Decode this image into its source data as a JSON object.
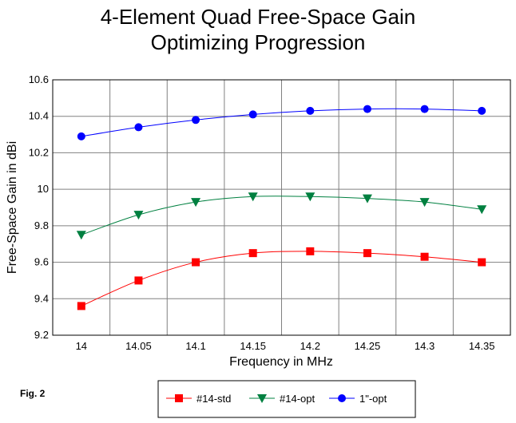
{
  "figure_label": "Fig. 2",
  "chart_data": {
    "type": "line",
    "title_lines": [
      "4-Element Quad Free-Space Gain",
      "Optimizing Progression"
    ],
    "xlabel": "Frequency in MHz",
    "ylabel": "Free-Space Gain in dBi",
    "x": [
      14,
      14.05,
      14.1,
      14.15,
      14.2,
      14.25,
      14.3,
      14.35
    ],
    "x_tick_labels": [
      "14",
      "14.05",
      "14.1",
      "14.15",
      "14.2",
      "14.25",
      "14.3",
      "14.35"
    ],
    "ylim": [
      9.2,
      10.6
    ],
    "y_ticks": [
      9.2,
      9.4,
      9.6,
      9.8,
      10,
      10.2,
      10.4,
      10.6
    ],
    "y_tick_labels": [
      "9.2",
      "9.4",
      "9.6",
      "9.8",
      "10",
      "10.2",
      "10.4",
      "10.6"
    ],
    "grid": true,
    "legend_position": "bottom",
    "series": [
      {
        "name": "#14-std",
        "color": "#ff0000",
        "marker": "square",
        "values": [
          9.36,
          9.5,
          9.6,
          9.65,
          9.66,
          9.65,
          9.63,
          9.6
        ]
      },
      {
        "name": "#14-opt",
        "color": "#008040",
        "marker": "triangle-down",
        "values": [
          9.75,
          9.86,
          9.93,
          9.96,
          9.96,
          9.95,
          9.93,
          9.89
        ]
      },
      {
        "name": "1\"-opt",
        "color": "#0000ff",
        "marker": "circle",
        "values": [
          10.29,
          10.34,
          10.38,
          10.41,
          10.43,
          10.44,
          10.44,
          10.43
        ]
      }
    ]
  }
}
